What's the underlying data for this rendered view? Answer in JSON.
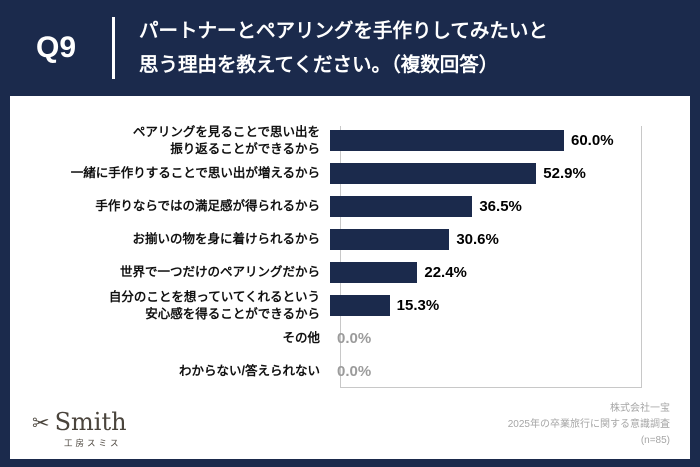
{
  "header": {
    "q_label": "Q9",
    "title_line1": "パートナーとペアリングを手作りしてみたいと",
    "title_line2": "思う理由を教えてください。（複数回答）"
  },
  "chart_data": {
    "type": "bar",
    "orientation": "horizontal",
    "title": "パートナーとペアリングを手作りしてみたいと思う理由を教えてください。（複数回答）",
    "categories": [
      "ペアリングを見ることで思い出を\n振り返ることができるから",
      "一緒に手作りすることで思い出が増えるから",
      "手作りならではの満足感が得られるから",
      "お揃いの物を身に着けられるから",
      "世界で一つだけのペアリングだから",
      "自分のことを想っていてくれるという\n安心感を得ることができるから",
      "その他",
      "わからない/答えられない"
    ],
    "values": [
      60.0,
      52.9,
      36.5,
      30.6,
      22.4,
      15.3,
      0.0,
      0.0
    ],
    "value_labels": [
      "60.0%",
      "52.9%",
      "36.5%",
      "30.6%",
      "22.4%",
      "15.3%",
      "0.0%",
      "0.0%"
    ],
    "xlim": [
      0,
      80
    ],
    "grid": "off",
    "legend": "none",
    "bar_color": "#1b2a4c",
    "value_color": "#000000",
    "zero_value_color": "#9b9b9b"
  },
  "footer": {
    "scissors_icon": "✂",
    "logo_text": "Smith",
    "logo_sub": "工房スミス",
    "credits": [
      "株式会社一宝",
      "2025年の卒業旅行に関する意識調査",
      "(n=85)"
    ]
  },
  "colors": {
    "background": "#1b2a4c",
    "card": "#ffffff",
    "header_text": "#ffffff"
  }
}
